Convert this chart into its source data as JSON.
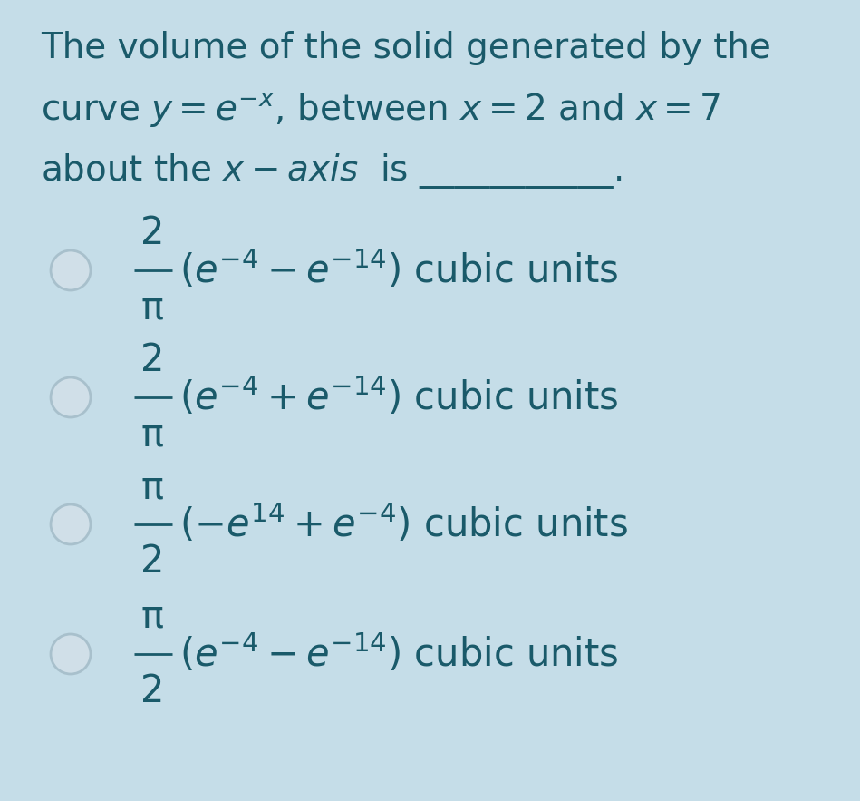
{
  "background_color": "#c5dde8",
  "text_color": "#1a5a6a",
  "circle_face_color": "#d0dfe8",
  "circle_edge_color": "#a8c0cc",
  "title_fontsize": 28,
  "option_fontsize": 30,
  "small_fontsize": 22,
  "title_lines": [
    "The volume of the solid generated by the",
    "curve $y = e^{-x}$, between $x = 2$ and $x = 7$",
    "about the $x - \\mathit{axis}$  is ___________."
  ],
  "option1_parts": {
    "num": "2",
    "den": "π",
    "rest": "$(e^{-4} - e^{-14})$ cubic units"
  },
  "option2_parts": {
    "num": "2",
    "den": "π",
    "rest": "$(e^{-4} + e^{-14})$ cubic units"
  },
  "option3_parts": {
    "num": "π",
    "den": "2",
    "rest": "$(-e^{14} + e^{-4})$ cubic units"
  },
  "option4_parts": {
    "num": "π",
    "den": "2",
    "rest": "$(e^{-4} - e^{-14})$ cubic units"
  }
}
